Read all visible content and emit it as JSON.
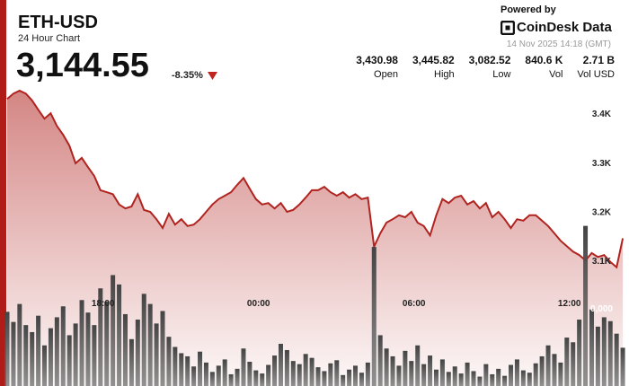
{
  "header": {
    "symbol": "ETH-USD",
    "subtitle": "24 Hour Chart",
    "price": "3,144.55",
    "change": "-8.35%",
    "powered_by": "Powered by",
    "brand": "CoinDesk Data",
    "timestamp": "14 Nov 2025 14:18 (GMT)"
  },
  "stats": [
    {
      "value": "3,430.98",
      "label": "Open"
    },
    {
      "value": "3,445.82",
      "label": "High"
    },
    {
      "value": "3,082.52",
      "label": "Low"
    },
    {
      "value": "840.6 K",
      "label": "Vol"
    },
    {
      "value": "2.71 B",
      "label": "Vol USD"
    }
  ],
  "chart_data": {
    "type": "line",
    "x": [
      0,
      0.24,
      0.48,
      0.72,
      0.96,
      1.2,
      1.44,
      1.68,
      1.92,
      2.16,
      2.4,
      2.64,
      2.88,
      3.12,
      3.36,
      3.6,
      3.84,
      4.08,
      4.32,
      4.56,
      4.8,
      5.04,
      5.28,
      5.52,
      5.76,
      6,
      6.24,
      6.48,
      6.72,
      6.96,
      7.2,
      7.44,
      7.68,
      7.92,
      8.16,
      8.4,
      8.64,
      8.88,
      9.12,
      9.36,
      9.6,
      9.84,
      10.08,
      10.32,
      10.56,
      10.8,
      11.04,
      11.28,
      11.52,
      11.76,
      12,
      12.24,
      12.48,
      12.72,
      12.96,
      13.2,
      13.44,
      13.68,
      13.92,
      14.16,
      14.4,
      14.64,
      14.88,
      15.12,
      15.36,
      15.6,
      15.84,
      16.08,
      16.32,
      16.56,
      16.8,
      17.04,
      17.28,
      17.52,
      17.76,
      18,
      18.24,
      18.48,
      18.72,
      18.96,
      19.2,
      19.44,
      19.68,
      19.92,
      20.16,
      20.4,
      20.64,
      20.88,
      21.12,
      21.36,
      21.6,
      21.84,
      22.08,
      22.32,
      22.56,
      22.8,
      23.04,
      23.28,
      23.52,
      23.76
    ],
    "xlim": [
      0,
      24
    ],
    "xticks": [
      {
        "value": 3.7,
        "label": "18:00"
      },
      {
        "value": 9.7,
        "label": "00:00"
      },
      {
        "value": 15.7,
        "label": "06:00"
      },
      {
        "value": 21.7,
        "label": "12:00"
      }
    ],
    "ylim": [
      2844,
      3457
    ],
    "yticks": [
      {
        "value": 3400,
        "label": "3.4K"
      },
      {
        "value": 3300,
        "label": "3.3K"
      },
      {
        "value": 3200,
        "label": "3.2K"
      },
      {
        "value": 3100,
        "label": "3.1K"
      }
    ],
    "y2lim": [
      0,
      38500
    ],
    "y2ticks": [
      {
        "value": 10000,
        "label": "0,000"
      }
    ],
    "grid": false,
    "series": [
      {
        "color": "#b0231f",
        "values": [
          3429,
          3440,
          3446,
          3440,
          3426,
          3407,
          3389,
          3400,
          3374,
          3356,
          3334,
          3298,
          3309,
          3290,
          3272,
          3243,
          3239,
          3235,
          3214,
          3206,
          3210,
          3235,
          3203,
          3199,
          3184,
          3166,
          3195,
          3173,
          3184,
          3170,
          3173,
          3184,
          3199,
          3214,
          3225,
          3232,
          3239,
          3254,
          3268,
          3246,
          3225,
          3214,
          3217,
          3206,
          3217,
          3199,
          3203,
          3214,
          3228,
          3243,
          3243,
          3250,
          3239,
          3232,
          3239,
          3228,
          3235,
          3225,
          3228,
          3128,
          3155,
          3177,
          3184,
          3192,
          3188,
          3199,
          3177,
          3170,
          3151,
          3192,
          3225,
          3217,
          3228,
          3232,
          3214,
          3221,
          3206,
          3217,
          3188,
          3199,
          3184,
          3166,
          3184,
          3181,
          3192,
          3192,
          3181,
          3170,
          3155,
          3140,
          3129,
          3118,
          3111,
          3100,
          3115,
          3107,
          3111,
          3097,
          3086,
          3145
        ]
      },
      {
        "type": "bar",
        "axis": "y2",
        "color": "#555555",
        "values": [
          9500,
          8200,
          10500,
          7800,
          6900,
          9000,
          5200,
          7400,
          8800,
          10200,
          6500,
          8000,
          11000,
          9400,
          7800,
          12500,
          10800,
          14200,
          13000,
          9200,
          6000,
          8500,
          11800,
          10500,
          8000,
          9600,
          6300,
          5000,
          4200,
          3800,
          2500,
          4400,
          3000,
          1800,
          2600,
          3400,
          1500,
          2200,
          4800,
          3100,
          2000,
          1600,
          2700,
          3900,
          5400,
          4600,
          3200,
          2800,
          4100,
          3600,
          2400,
          1900,
          2900,
          3300,
          1400,
          2100,
          2600,
          1700,
          3000,
          17800,
          6500,
          4800,
          3800,
          2600,
          4500,
          3200,
          5200,
          2800,
          3900,
          2100,
          3400,
          1800,
          2500,
          1600,
          3000,
          1900,
          1200,
          2800,
          1500,
          2200,
          1300,
          2700,
          3400,
          2000,
          1700,
          2900,
          3800,
          5200,
          4100,
          3000,
          6200,
          5600,
          8500,
          20500,
          9800,
          7600,
          8800,
          8300,
          6700,
          4900
        ]
      }
    ]
  }
}
